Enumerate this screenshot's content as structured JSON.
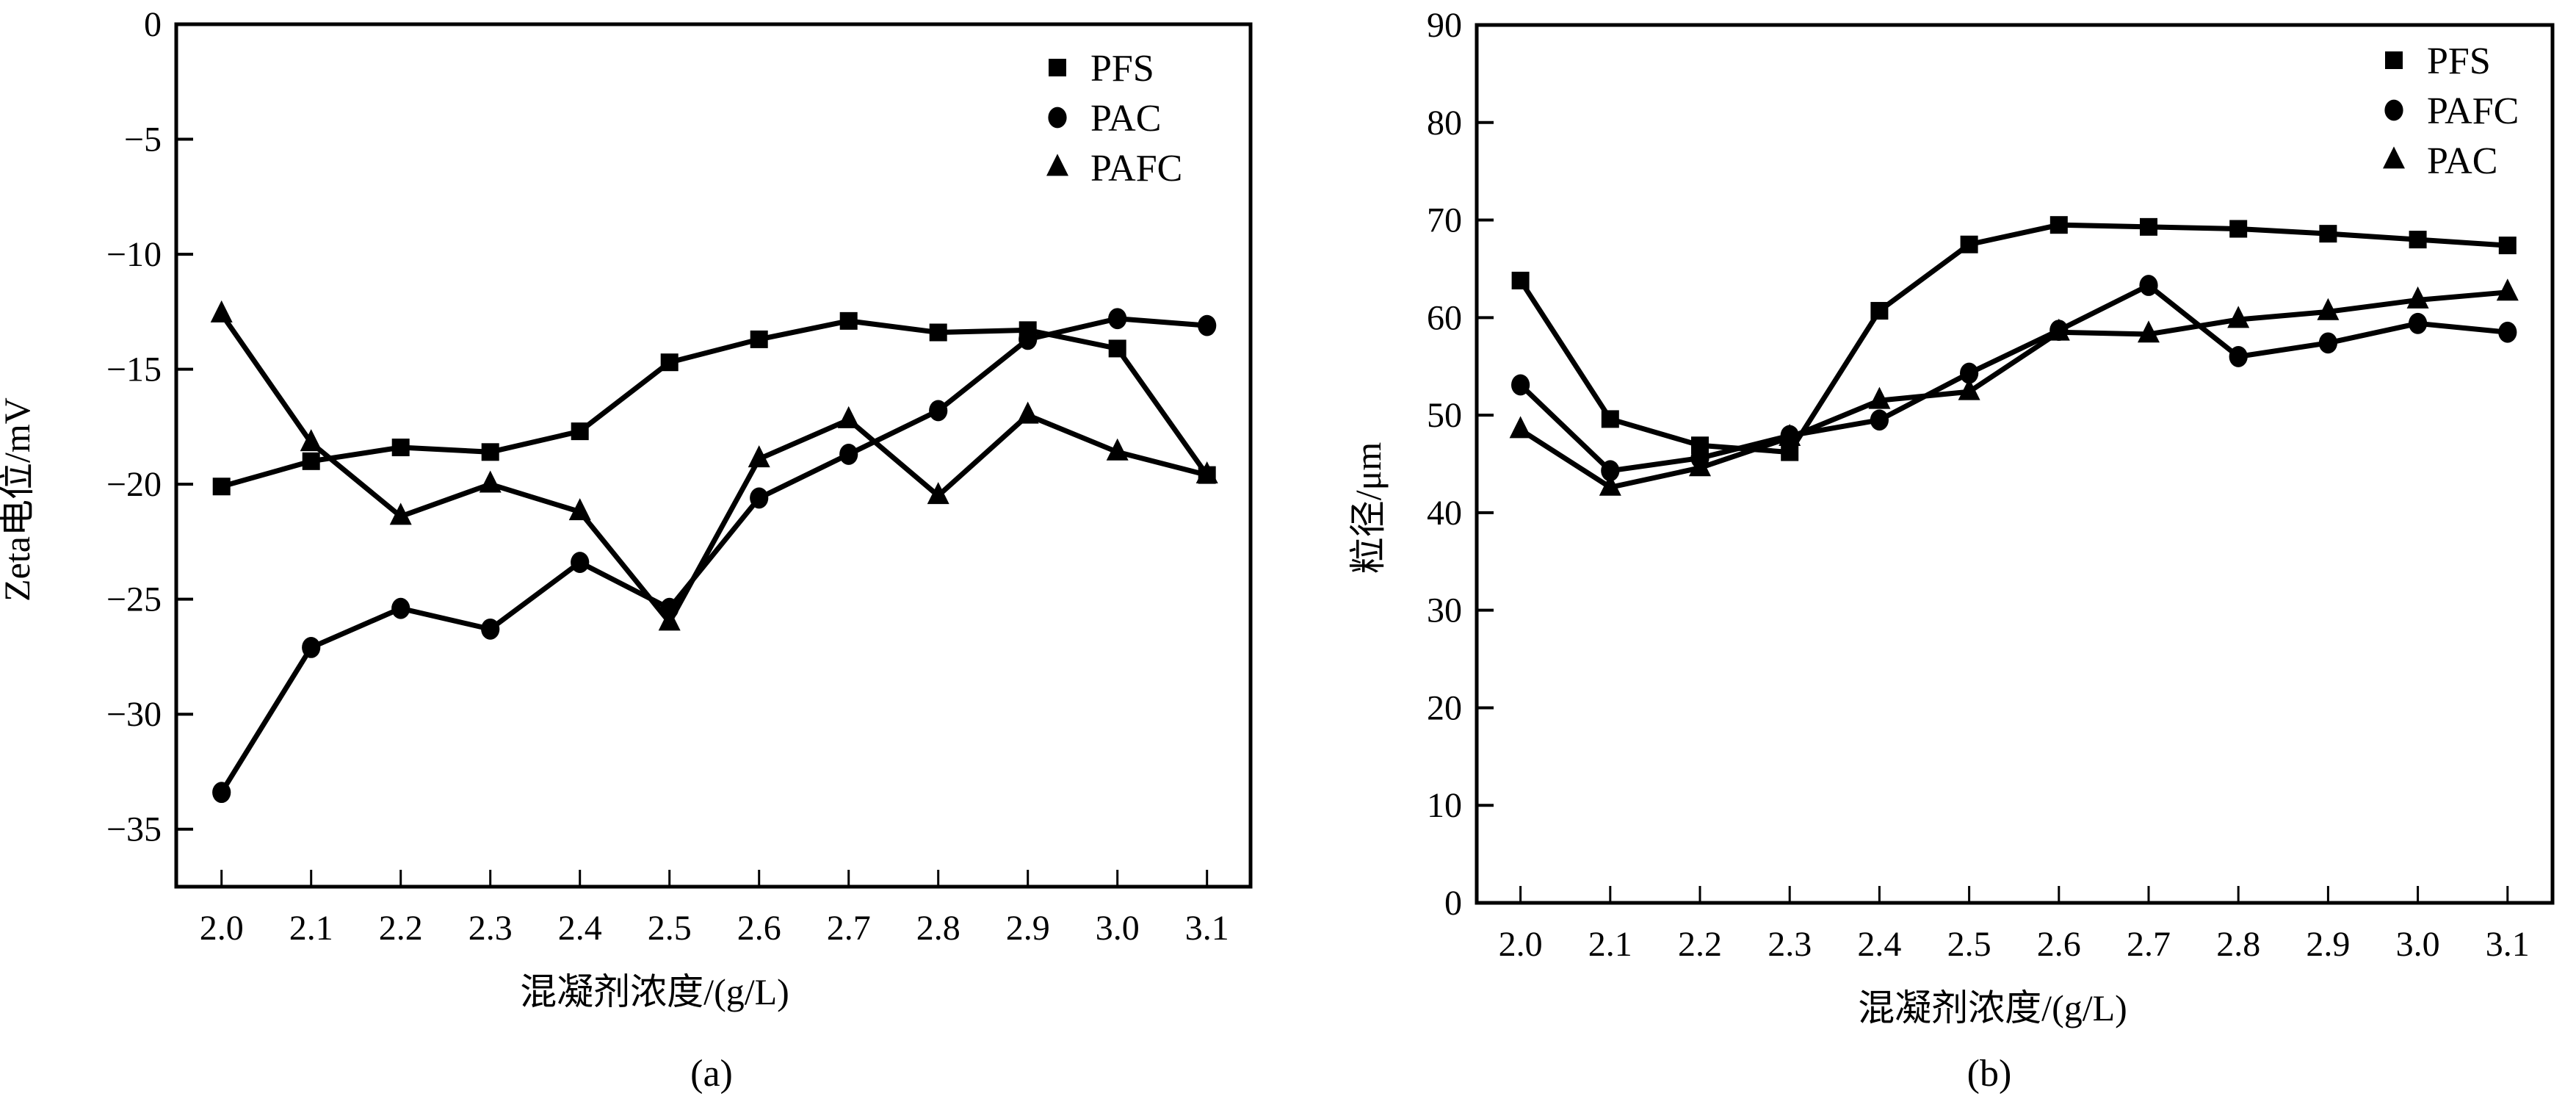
{
  "figure": {
    "captions": [
      "(a)",
      "(b)"
    ]
  },
  "chart_data": [
    {
      "type": "line",
      "panel": "(a)",
      "title": "",
      "xlabel": "混凝剂浓度/(g/L)",
      "ylabel": "Zeta电位/mV",
      "x": [
        2.0,
        2.1,
        2.2,
        2.3,
        2.4,
        2.5,
        2.6,
        2.7,
        2.8,
        2.9,
        3.0,
        3.1
      ],
      "xticklabels": [
        "2.0",
        "2.1",
        "2.2",
        "2.3",
        "2.4",
        "2.5",
        "2.6",
        "2.7",
        "2.8",
        "2.9",
        "3.0",
        "3.1"
      ],
      "ylim": [
        -37.5,
        0
      ],
      "yticks": [
        0,
        -5,
        -10,
        -15,
        -20,
        -25,
        -30,
        -35
      ],
      "yticklabels": [
        "0",
        "−5",
        "−10",
        "−15",
        "−20",
        "−25",
        "−30",
        "−35"
      ],
      "grid": false,
      "legend_position": "top-right",
      "series": [
        {
          "name": "PFS",
          "marker": "square",
          "values": [
            -20.1,
            -19.0,
            -18.4,
            -18.6,
            -17.7,
            -14.7,
            -13.7,
            -12.9,
            -13.4,
            -13.3,
            -14.1,
            -19.6
          ]
        },
        {
          "name": "PAC",
          "marker": "circle",
          "values": [
            -33.4,
            -27.1,
            -25.4,
            -26.3,
            -23.4,
            -25.4,
            -20.6,
            -18.7,
            -16.8,
            -13.7,
            -12.8,
            -13.1
          ]
        },
        {
          "name": "PAFC",
          "marker": "triangle",
          "values": [
            -12.6,
            -18.2,
            -21.4,
            -20.0,
            -21.2,
            -26.0,
            -18.9,
            -17.2,
            -20.5,
            -17.0,
            -18.6,
            -19.6
          ]
        }
      ]
    },
    {
      "type": "line",
      "panel": "(b)",
      "title": "",
      "xlabel": "混凝剂浓度/(g/L)",
      "ylabel": "粒径/μm",
      "x": [
        2.0,
        2.1,
        2.2,
        2.3,
        2.4,
        2.5,
        2.6,
        2.7,
        2.8,
        2.9,
        3.0,
        3.1
      ],
      "xticklabels": [
        "2.0",
        "2.1",
        "2.2",
        "2.3",
        "2.4",
        "2.5",
        "2.6",
        "2.7",
        "2.8",
        "2.9",
        "3.0",
        "3.1"
      ],
      "ylim": [
        0,
        90
      ],
      "yticks": [
        0,
        10,
        20,
        30,
        40,
        50,
        60,
        70,
        80,
        90
      ],
      "yticklabels": [
        "0",
        "10",
        "20",
        "30",
        "40",
        "50",
        "60",
        "70",
        "80",
        "90"
      ],
      "grid": false,
      "legend_position": "top-right",
      "series": [
        {
          "name": "PFS",
          "marker": "square",
          "values": [
            63.8,
            49.6,
            46.9,
            46.2,
            60.7,
            67.5,
            69.5,
            69.3,
            69.1,
            68.6,
            68.0,
            67.4
          ]
        },
        {
          "name": "PAFC",
          "marker": "circle",
          "values": [
            53.1,
            44.3,
            45.6,
            47.9,
            49.5,
            54.3,
            58.7,
            63.3,
            56.0,
            57.4,
            59.4,
            58.5
          ]
        },
        {
          "name": "PAC",
          "marker": "triangle",
          "values": [
            48.5,
            42.6,
            44.6,
            47.7,
            51.5,
            52.4,
            58.5,
            58.3,
            59.8,
            60.6,
            61.8,
            62.6
          ]
        }
      ]
    }
  ]
}
